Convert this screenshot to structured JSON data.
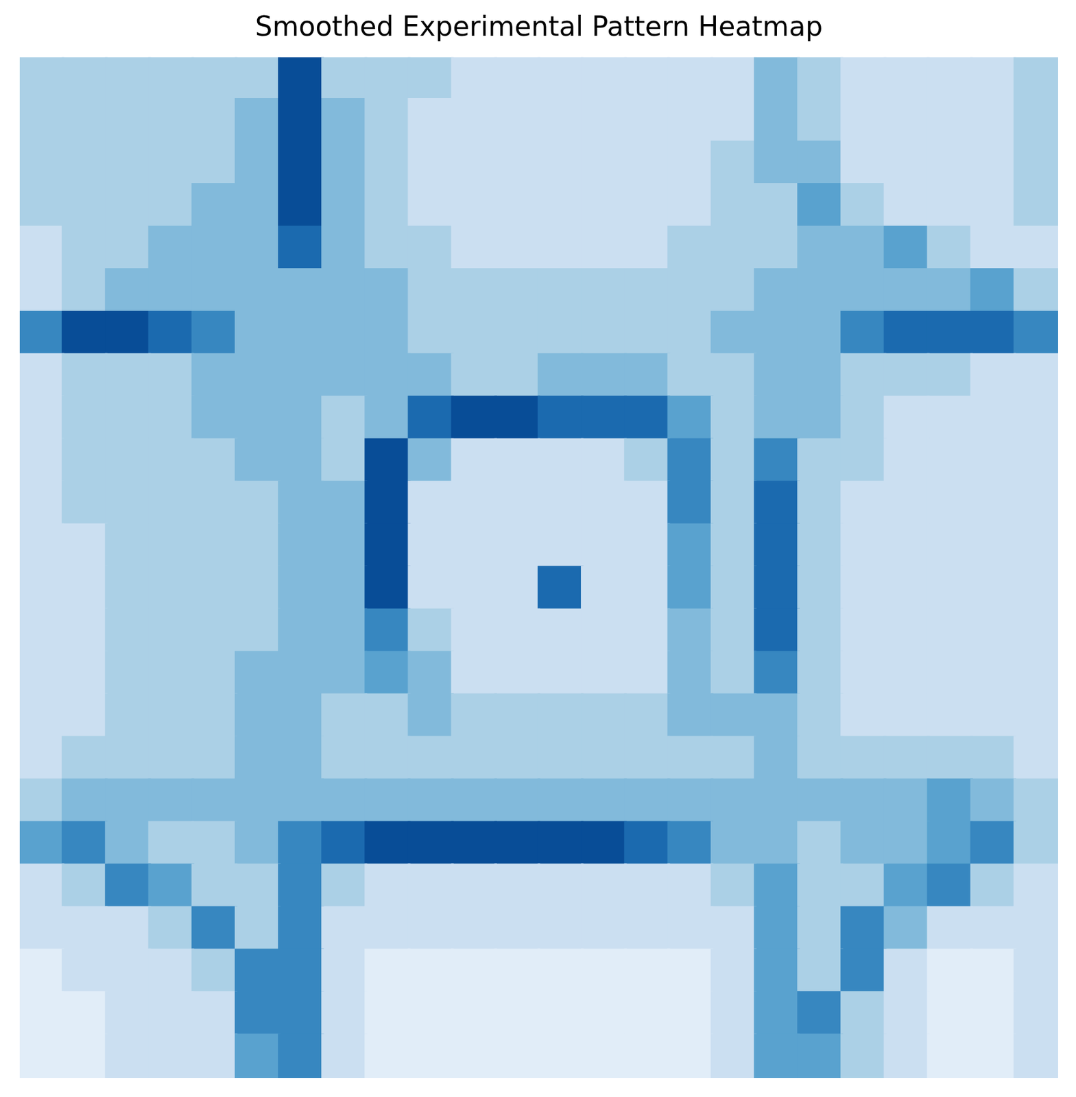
{
  "chart_data": {
    "type": "heatmap",
    "title": "Smoothed Experimental Pattern Heatmap",
    "color": "Blues",
    "color_range": [
      0,
      9
    ],
    "grid": false,
    "tick_labels": false,
    "xlim": [
      -0.5,
      23.5
    ],
    "ylim": [
      -0.5,
      23.5
    ],
    "cells": [
      [
        3,
        3,
        3,
        3,
        3,
        3,
        8,
        3,
        3,
        3,
        2,
        2,
        2,
        2,
        2,
        2,
        2,
        4,
        3,
        2,
        2,
        2,
        2,
        3
      ],
      [
        3,
        3,
        3,
        3,
        3,
        4,
        8,
        4,
        3,
        2,
        2,
        2,
        2,
        2,
        2,
        2,
        2,
        4,
        3,
        2,
        2,
        2,
        2,
        3
      ],
      [
        3,
        3,
        3,
        3,
        3,
        4,
        8,
        4,
        3,
        2,
        2,
        2,
        2,
        2,
        2,
        2,
        3,
        4,
        4,
        2,
        2,
        2,
        2,
        3
      ],
      [
        3,
        3,
        3,
        3,
        4,
        4,
        8,
        4,
        3,
        2,
        2,
        2,
        2,
        2,
        2,
        2,
        3,
        3,
        5,
        3,
        2,
        2,
        2,
        3
      ],
      [
        2,
        3,
        3,
        4,
        4,
        4,
        7,
        4,
        3,
        3,
        2,
        2,
        2,
        2,
        2,
        3,
        3,
        3,
        4,
        4,
        5,
        3,
        2,
        2
      ],
      [
        2,
        3,
        4,
        4,
        4,
        4,
        4,
        4,
        4,
        3,
        3,
        3,
        3,
        3,
        3,
        3,
        3,
        4,
        4,
        4,
        4,
        4,
        5,
        3
      ],
      [
        6,
        8,
        8,
        7,
        6,
        4,
        4,
        4,
        4,
        3,
        3,
        3,
        3,
        3,
        3,
        3,
        4,
        4,
        4,
        6,
        7,
        7,
        7,
        6
      ],
      [
        2,
        3,
        3,
        3,
        4,
        4,
        4,
        4,
        4,
        4,
        3,
        3,
        4,
        4,
        4,
        3,
        3,
        4,
        4,
        3,
        3,
        3,
        2,
        2
      ],
      [
        2,
        3,
        3,
        3,
        4,
        4,
        4,
        3,
        4,
        7,
        8,
        8,
        7,
        7,
        7,
        5,
        3,
        4,
        4,
        3,
        2,
        2,
        2,
        2
      ],
      [
        2,
        3,
        3,
        3,
        3,
        4,
        4,
        3,
        8,
        4,
        2,
        2,
        2,
        2,
        3,
        6,
        3,
        6,
        3,
        3,
        2,
        2,
        2,
        2
      ],
      [
        2,
        3,
        3,
        3,
        3,
        3,
        4,
        4,
        8,
        2,
        2,
        2,
        2,
        2,
        2,
        6,
        3,
        7,
        3,
        2,
        2,
        2,
        2,
        2
      ],
      [
        2,
        2,
        3,
        3,
        3,
        3,
        4,
        4,
        8,
        2,
        2,
        2,
        2,
        2,
        2,
        5,
        3,
        7,
        3,
        2,
        2,
        2,
        2,
        2
      ],
      [
        2,
        2,
        3,
        3,
        3,
        3,
        4,
        4,
        8,
        2,
        2,
        2,
        7,
        2,
        2,
        5,
        3,
        7,
        3,
        2,
        2,
        2,
        2,
        2
      ],
      [
        2,
        2,
        3,
        3,
        3,
        3,
        4,
        4,
        6,
        3,
        2,
        2,
        2,
        2,
        2,
        4,
        3,
        7,
        3,
        2,
        2,
        2,
        2,
        2
      ],
      [
        2,
        2,
        3,
        3,
        3,
        4,
        4,
        4,
        5,
        4,
        2,
        2,
        2,
        2,
        2,
        4,
        3,
        6,
        3,
        2,
        2,
        2,
        2,
        2
      ],
      [
        2,
        2,
        3,
        3,
        3,
        4,
        4,
        3,
        3,
        4,
        3,
        3,
        3,
        3,
        3,
        4,
        4,
        4,
        3,
        2,
        2,
        2,
        2,
        2
      ],
      [
        2,
        3,
        3,
        3,
        3,
        4,
        4,
        3,
        3,
        3,
        3,
        3,
        3,
        3,
        3,
        3,
        3,
        4,
        3,
        3,
        3,
        3,
        3,
        2
      ],
      [
        3,
        4,
        4,
        4,
        4,
        4,
        4,
        4,
        4,
        4,
        4,
        4,
        4,
        4,
        4,
        4,
        4,
        4,
        4,
        4,
        4,
        5,
        4,
        3
      ],
      [
        5,
        6,
        4,
        3,
        3,
        4,
        6,
        7,
        8,
        8,
        8,
        8,
        8,
        8,
        7,
        6,
        4,
        4,
        3,
        4,
        4,
        5,
        6,
        3
      ],
      [
        2,
        3,
        6,
        5,
        3,
        3,
        6,
        3,
        2,
        2,
        2,
        2,
        2,
        2,
        2,
        2,
        3,
        5,
        3,
        3,
        5,
        6,
        3,
        2
      ],
      [
        2,
        2,
        2,
        3,
        6,
        3,
        6,
        2,
        2,
        2,
        2,
        2,
        2,
        2,
        2,
        2,
        2,
        5,
        3,
        6,
        4,
        2,
        2,
        2
      ],
      [
        1,
        2,
        2,
        2,
        3,
        6,
        6,
        2,
        1,
        1,
        1,
        1,
        1,
        1,
        1,
        1,
        2,
        5,
        3,
        6,
        2,
        1,
        1,
        2
      ],
      [
        1,
        1,
        2,
        2,
        2,
        6,
        6,
        2,
        1,
        1,
        1,
        1,
        1,
        1,
        1,
        1,
        2,
        5,
        6,
        3,
        2,
        1,
        1,
        2
      ],
      [
        1,
        1,
        2,
        2,
        2,
        5,
        6,
        2,
        1,
        1,
        1,
        1,
        1,
        1,
        1,
        1,
        2,
        5,
        5,
        3,
        2,
        1,
        1,
        2
      ]
    ]
  }
}
